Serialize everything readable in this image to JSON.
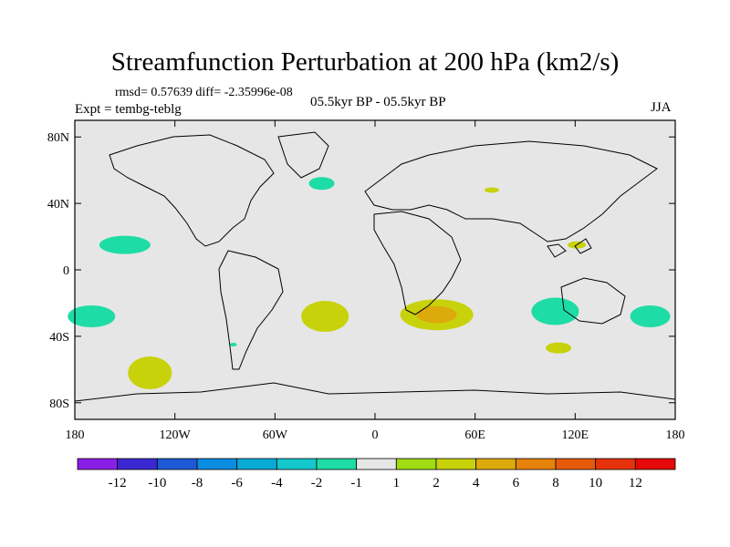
{
  "title": "Streamfunction Perturbation at 200 hPa (km2/s)",
  "stats": "rmsd= 0.57639 diff= -2.35996e-08",
  "experiment": "Expt = tembg-teblg",
  "period": "05.5kyr BP - 05.5kyr BP",
  "season": "JJA",
  "axes": {
    "lat_labels": [
      "80N",
      "40N",
      "0",
      "40S",
      "80S"
    ],
    "lat_values": [
      80,
      40,
      0,
      -40,
      -80
    ],
    "lon_labels": [
      "180",
      "120W",
      "60W",
      "0",
      "60E",
      "120E",
      "180"
    ],
    "lon_values": [
      -180,
      -120,
      -60,
      0,
      60,
      120,
      180
    ]
  },
  "colorbar": {
    "labels": [
      "-12",
      "-10",
      "-8",
      "-6",
      "-4",
      "-2",
      "-1",
      "1",
      "2",
      "4",
      "6",
      "8",
      "10",
      "12"
    ],
    "colors": [
      "#8a1ee6",
      "#3c28d2",
      "#1e5ad7",
      "#0a8ce1",
      "#0aaad7",
      "#14c8cd",
      "#1edca5",
      "#e6e6e6",
      "#a0dc14",
      "#c8d20a",
      "#dcaa0a",
      "#e6820a",
      "#e65a0a",
      "#e6320a",
      "#e60a0a"
    ]
  },
  "chart_data": {
    "type": "contour-map",
    "variable": "Streamfunction Perturbation at 200 hPa (km2/s)",
    "units": "km2/s",
    "regions": [
      {
        "lon": -150,
        "lat": 15,
        "value": -2,
        "label": "North Pacific (negative)"
      },
      {
        "lon": -170,
        "lat": -28,
        "value": -2,
        "label": "South Pacific west (negative)"
      },
      {
        "lon": 165,
        "lat": -28,
        "value": -2,
        "label": "South Pacific east (negative)"
      },
      {
        "lon": -135,
        "lat": -62,
        "value": 2,
        "label": "South Pacific high lat (positive)"
      },
      {
        "lon": -30,
        "lat": -28,
        "value": 2,
        "label": "South Atlantic (positive)"
      },
      {
        "lon": 37,
        "lat": -27,
        "value": 4,
        "label": "South Africa / Indian Ocean (positive, core)"
      },
      {
        "lon": 108,
        "lat": -25,
        "value": -2,
        "label": "Indian Ocean SE (negative)"
      },
      {
        "lon": 110,
        "lat": -47,
        "value": 2,
        "label": "Southern Indian Ocean (positive)"
      },
      {
        "lon": -32,
        "lat": 52,
        "value": -2,
        "label": "North Atlantic (negative)"
      },
      {
        "lon": 70,
        "lat": 48,
        "value": 2,
        "label": "Central Asia (positive)"
      },
      {
        "lon": 121,
        "lat": 15,
        "value": 2,
        "label": "Philippines (positive)"
      },
      {
        "lon": -85,
        "lat": -45,
        "value": -2,
        "label": "South-east Pacific small (negative)"
      }
    ],
    "lat_range": [
      -90,
      90
    ],
    "lon_range": [
      -180,
      180
    ]
  }
}
